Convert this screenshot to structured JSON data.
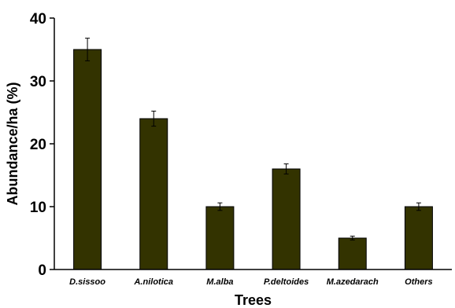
{
  "chart_data": {
    "type": "bar",
    "title": "",
    "xlabel": "Trees",
    "ylabel": "Abundance/ha (%)",
    "categories": [
      "D.sissoo",
      "A.nilotica",
      "M.alba",
      "P.deltoides",
      "M.azedarach",
      "Others"
    ],
    "values": [
      35,
      24,
      10,
      16,
      5,
      10
    ],
    "errors": [
      1.8,
      1.2,
      0.6,
      0.8,
      0.3,
      0.6
    ],
    "ylim": [
      0,
      40
    ],
    "yticks": [
      0,
      10,
      20,
      30,
      40
    ],
    "bar_color": "#333300",
    "grid": false,
    "legend": "none"
  }
}
